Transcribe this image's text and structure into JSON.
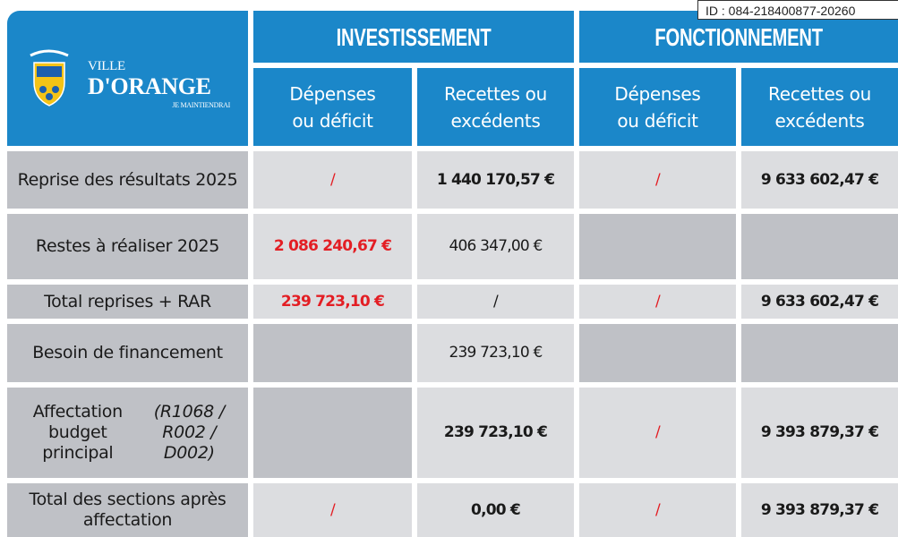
{
  "stamp": "ID : 084-218400877-20260",
  "header": {
    "logo": {
      "ville": "VILLE",
      "name": "D'ORANGE",
      "motto": "JE MAINTIENDRAI"
    },
    "groups": [
      "INVESTISSEMENT",
      "FONCTIONNEMENT"
    ],
    "subheaders": [
      "Dépenses ou déficit",
      "Recettes ou excédents",
      "Dépenses ou déficit",
      "Recettes ou excédents"
    ]
  },
  "rows": [
    {
      "label": "Reprise des résultats 2025",
      "cells": [
        "/",
        "1 440 170,57 €",
        "/",
        "9 633 602,47 €"
      ]
    },
    {
      "label": "Restes à réaliser 2025",
      "cells": [
        "2 086 240,67 €",
        "406 347,00 €",
        null,
        null
      ]
    },
    {
      "label": "Total reprises + RAR",
      "cells": [
        "239 723,10 €",
        "/",
        "/",
        "9 633 602,47 €"
      ]
    },
    {
      "label": "Besoin de financement",
      "cells": [
        null,
        "239 723,10 €",
        null,
        null
      ]
    },
    {
      "label": "Affectation budget principal",
      "note": "(R1068 / R002 / D002)",
      "cells": [
        null,
        "239 723,10 €",
        "/",
        "9 393 879,37 €"
      ]
    },
    {
      "label": "Total des sections après affectation",
      "cells": [
        "/",
        "0,00 €",
        "/",
        "9 393 879,37 €"
      ]
    }
  ]
}
